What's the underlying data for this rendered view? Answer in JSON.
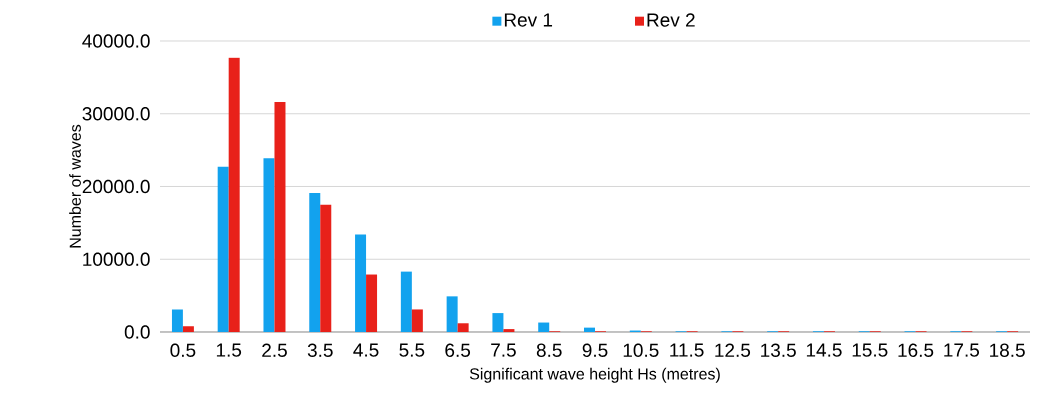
{
  "chart_data": {
    "type": "bar",
    "xlabel": "Significant wave  height Hs (metres)",
    "ylabel": "Number of waves",
    "categories": [
      "0.5",
      "1.5",
      "2.5",
      "3.5",
      "4.5",
      "5.5",
      "6.5",
      "7.5",
      "8.5",
      "9.5",
      "10.5",
      "11.5",
      "12.5",
      "13.5",
      "14.5",
      "15.5",
      "16.5",
      "17.5",
      "18.5"
    ],
    "series": [
      {
        "name": "Rev 1",
        "color": "#12a2ee",
        "values": [
          3100,
          22700,
          23900,
          19100,
          13400,
          8300,
          4900,
          2600,
          1300,
          600,
          200,
          100,
          100,
          100,
          100,
          100,
          100,
          100,
          100
        ]
      },
      {
        "name": "Rev 2",
        "color": "#e8211a",
        "values": [
          800,
          37700,
          31600,
          17500,
          7900,
          3100,
          1200,
          400,
          100,
          100,
          100,
          100,
          100,
          100,
          100,
          100,
          100,
          100,
          100
        ]
      }
    ],
    "ylim": [
      0,
      40000
    ],
    "yticks": [
      {
        "value": 0,
        "label": "0.0"
      },
      {
        "value": 10000,
        "label": "10000.0"
      },
      {
        "value": 20000,
        "label": "20000.0"
      },
      {
        "value": 30000,
        "label": "30000.0"
      },
      {
        "value": 40000,
        "label": "40000.0"
      }
    ],
    "grid": "y",
    "legend": "top"
  }
}
